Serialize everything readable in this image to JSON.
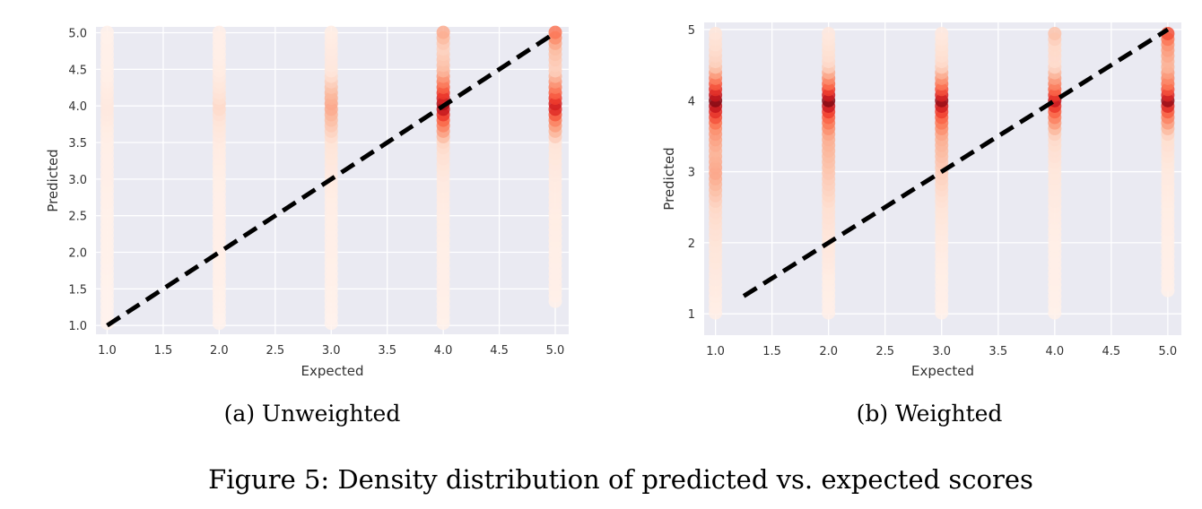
{
  "figure": {
    "caption": "Figure 5: Density distribution of predicted vs. expected scores"
  },
  "chart_data": [
    {
      "type": "scatter",
      "subcaption": "(a) Unweighted",
      "xlabel": "Expected",
      "ylabel": "Predicted",
      "xlim": [
        0.9,
        5.12
      ],
      "ylim": [
        0.88,
        5.08
      ],
      "xticks": [
        "1.0",
        "1.5",
        "2.0",
        "2.5",
        "3.0",
        "3.5",
        "4.0",
        "4.5",
        "5.0"
      ],
      "yticks": [
        "1.0",
        "1.5",
        "2.0",
        "2.5",
        "3.0",
        "3.5",
        "4.0",
        "4.5",
        "5.0"
      ],
      "grid": true,
      "colormap": "Reds",
      "reference_line": {
        "style": "dashed",
        "color": "#000000",
        "from": [
          1.0,
          1.0
        ],
        "to": [
          5.0,
          5.0
        ]
      },
      "columns": [
        {
          "x": 1.0,
          "density": [
            [
              1.0,
              0.02
            ],
            [
              1.5,
              0.02
            ],
            [
              2.0,
              0.03
            ],
            [
              2.5,
              0.03
            ],
            [
              3.0,
              0.04
            ],
            [
              3.5,
              0.05
            ],
            [
              3.8,
              0.07
            ],
            [
              4.0,
              0.09
            ],
            [
              4.2,
              0.07
            ],
            [
              4.5,
              0.04
            ],
            [
              5.0,
              0.03
            ]
          ]
        },
        {
          "x": 2.0,
          "density": [
            [
              1.0,
              0.02
            ],
            [
              1.5,
              0.03
            ],
            [
              2.0,
              0.04
            ],
            [
              2.5,
              0.04
            ],
            [
              3.0,
              0.05
            ],
            [
              3.5,
              0.07
            ],
            [
              3.8,
              0.12
            ],
            [
              4.0,
              0.18
            ],
            [
              4.2,
              0.12
            ],
            [
              4.5,
              0.06
            ],
            [
              5.0,
              0.04
            ]
          ]
        },
        {
          "x": 3.0,
          "density": [
            [
              1.0,
              0.02
            ],
            [
              1.5,
              0.03
            ],
            [
              2.0,
              0.04
            ],
            [
              2.5,
              0.05
            ],
            [
              3.0,
              0.07
            ],
            [
              3.5,
              0.12
            ],
            [
              3.8,
              0.28
            ],
            [
              4.0,
              0.38
            ],
            [
              4.2,
              0.3
            ],
            [
              4.5,
              0.1
            ],
            [
              5.0,
              0.06
            ]
          ]
        },
        {
          "x": 4.0,
          "density": [
            [
              1.0,
              0.03
            ],
            [
              1.5,
              0.04
            ],
            [
              2.0,
              0.05
            ],
            [
              2.5,
              0.06
            ],
            [
              3.0,
              0.08
            ],
            [
              3.5,
              0.18
            ],
            [
              3.8,
              0.6
            ],
            [
              4.0,
              0.92
            ],
            [
              4.2,
              0.7
            ],
            [
              4.5,
              0.3
            ],
            [
              4.8,
              0.2
            ],
            [
              5.0,
              0.35
            ]
          ]
        },
        {
          "x": 5.0,
          "density": [
            [
              1.3,
              0.03
            ],
            [
              1.5,
              0.04
            ],
            [
              2.0,
              0.05
            ],
            [
              2.5,
              0.06
            ],
            [
              3.0,
              0.07
            ],
            [
              3.5,
              0.12
            ],
            [
              3.8,
              0.5
            ],
            [
              4.0,
              0.85
            ],
            [
              4.2,
              0.6
            ],
            [
              4.5,
              0.2
            ],
            [
              4.8,
              0.3
            ],
            [
              5.0,
              0.55
            ]
          ]
        }
      ]
    },
    {
      "type": "scatter",
      "subcaption": "(b) Weighted",
      "xlabel": "Expected",
      "ylabel": "Predicted",
      "xlim": [
        0.9,
        5.12
      ],
      "ylim": [
        0.7,
        5.1
      ],
      "xticks": [
        "1.0",
        "1.5",
        "2.0",
        "2.5",
        "3.0",
        "3.5",
        "4.0",
        "4.5",
        "5.0"
      ],
      "yticks": [
        "1",
        "2",
        "3",
        "4",
        "5"
      ],
      "grid": true,
      "colormap": "Reds",
      "reference_line": {
        "style": "dashed",
        "color": "#000000",
        "from": [
          1.25,
          1.25
        ],
        "to": [
          5.0,
          5.0
        ]
      },
      "columns": [
        {
          "x": 1.0,
          "density": [
            [
              1.0,
              0.05
            ],
            [
              1.5,
              0.08
            ],
            [
              2.0,
              0.12
            ],
            [
              2.5,
              0.18
            ],
            [
              3.0,
              0.38
            ],
            [
              3.3,
              0.32
            ],
            [
              3.6,
              0.45
            ],
            [
              3.8,
              0.7
            ],
            [
              4.0,
              0.95
            ],
            [
              4.2,
              0.7
            ],
            [
              4.5,
              0.22
            ],
            [
              5.0,
              0.1
            ]
          ]
        },
        {
          "x": 2.0,
          "density": [
            [
              1.0,
              0.04
            ],
            [
              1.5,
              0.06
            ],
            [
              2.0,
              0.1
            ],
            [
              2.5,
              0.15
            ],
            [
              3.0,
              0.25
            ],
            [
              3.5,
              0.35
            ],
            [
              3.8,
              0.65
            ],
            [
              4.0,
              0.95
            ],
            [
              4.2,
              0.65
            ],
            [
              4.5,
              0.18
            ],
            [
              5.0,
              0.08
            ]
          ]
        },
        {
          "x": 3.0,
          "density": [
            [
              1.0,
              0.03
            ],
            [
              1.5,
              0.05
            ],
            [
              2.0,
              0.07
            ],
            [
              2.5,
              0.12
            ],
            [
              3.0,
              0.22
            ],
            [
              3.5,
              0.35
            ],
            [
              3.8,
              0.65
            ],
            [
              4.0,
              0.92
            ],
            [
              4.2,
              0.6
            ],
            [
              4.5,
              0.18
            ],
            [
              5.0,
              0.08
            ]
          ]
        },
        {
          "x": 4.0,
          "density": [
            [
              1.0,
              0.03
            ],
            [
              1.5,
              0.04
            ],
            [
              2.0,
              0.05
            ],
            [
              2.5,
              0.07
            ],
            [
              3.0,
              0.1
            ],
            [
              3.5,
              0.18
            ],
            [
              3.8,
              0.55
            ],
            [
              4.0,
              0.85
            ],
            [
              4.2,
              0.55
            ],
            [
              4.5,
              0.16
            ],
            [
              4.8,
              0.18
            ],
            [
              5.0,
              0.3
            ]
          ]
        },
        {
          "x": 5.0,
          "density": [
            [
              1.3,
              0.03
            ],
            [
              1.5,
              0.04
            ],
            [
              2.0,
              0.05
            ],
            [
              2.5,
              0.06
            ],
            [
              3.0,
              0.08
            ],
            [
              3.5,
              0.16
            ],
            [
              3.8,
              0.55
            ],
            [
              4.0,
              0.92
            ],
            [
              4.2,
              0.6
            ],
            [
              4.5,
              0.3
            ],
            [
              4.8,
              0.45
            ],
            [
              5.0,
              0.75
            ]
          ]
        }
      ]
    }
  ]
}
